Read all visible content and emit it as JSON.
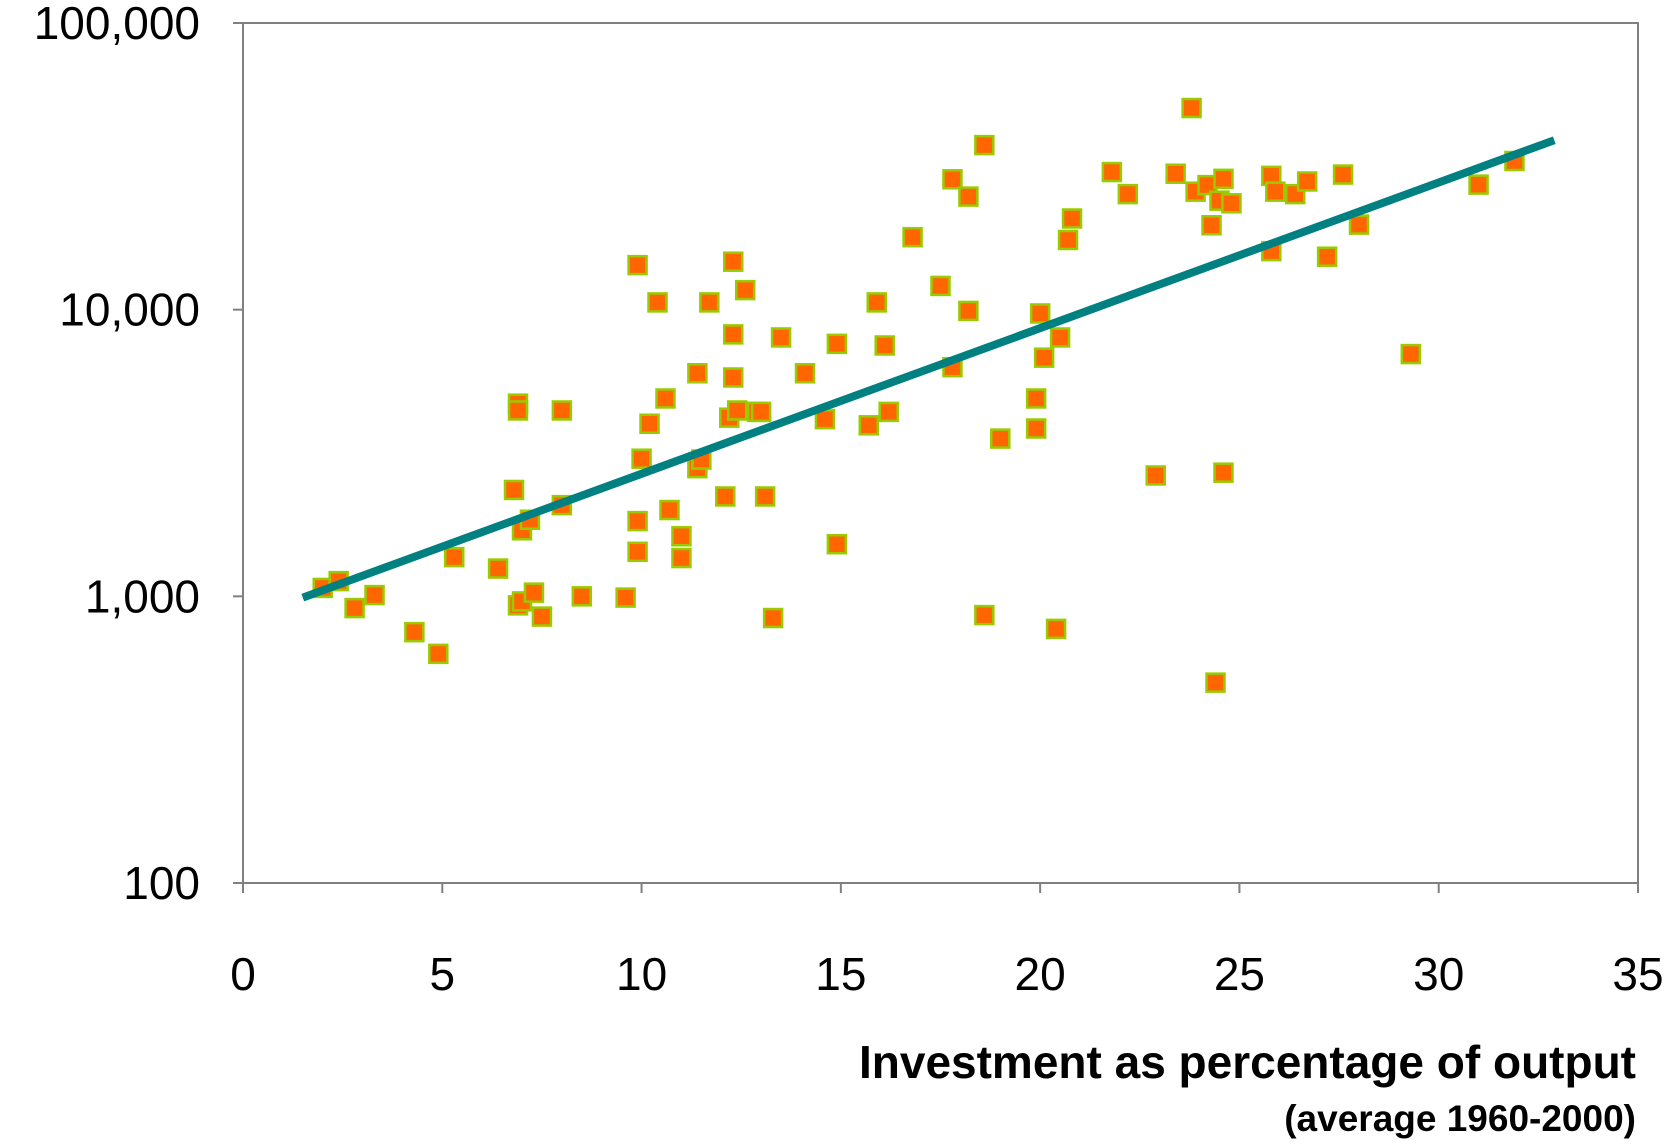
{
  "chart_data": {
    "type": "scatter",
    "title": "",
    "xlabel": "Investment as percentage of output",
    "xlabel_sub": "(average 1960-2000)",
    "ylabel": "",
    "xlim": [
      0,
      35
    ],
    "ylim": [
      100,
      100000
    ],
    "yscale": "log",
    "x_ticks": [
      0,
      5,
      10,
      15,
      20,
      25,
      30,
      35
    ],
    "x_tick_labels": [
      "0",
      "5",
      "10",
      "15",
      "20",
      "25",
      "30",
      "35"
    ],
    "y_ticks": [
      100,
      1000,
      10000,
      100000
    ],
    "y_tick_labels": [
      "100",
      "1,000",
      "10,000",
      "100,000"
    ],
    "grid": false,
    "legend": "none",
    "colors": {
      "marker_fill": "#ff6600",
      "marker_edge": "#99cc00",
      "trend_line": "#008080",
      "frame": "#808080"
    },
    "series": [
      {
        "marker": "square",
        "points": [
          [
            2.0,
            1070
          ],
          [
            2.4,
            1130
          ],
          [
            2.8,
            910
          ],
          [
            3.3,
            1010
          ],
          [
            4.3,
            750
          ],
          [
            4.9,
            630
          ],
          [
            5.3,
            1370
          ],
          [
            6.4,
            1250
          ],
          [
            6.8,
            2350
          ],
          [
            6.9,
            4700
          ],
          [
            6.9,
            4450
          ],
          [
            6.9,
            930
          ],
          [
            7.0,
            960
          ],
          [
            7.0,
            1700
          ],
          [
            7.2,
            1850
          ],
          [
            7.3,
            1030
          ],
          [
            7.5,
            850
          ],
          [
            8.0,
            2080
          ],
          [
            8.0,
            4450
          ],
          [
            8.5,
            1000
          ],
          [
            9.6,
            990
          ],
          [
            9.9,
            14300
          ],
          [
            9.9,
            1830
          ],
          [
            9.9,
            1430
          ],
          [
            10.0,
            3020
          ],
          [
            10.2,
            4000
          ],
          [
            10.4,
            10600
          ],
          [
            10.6,
            4900
          ],
          [
            10.7,
            2000
          ],
          [
            11.0,
            1620
          ],
          [
            11.0,
            1360
          ],
          [
            11.4,
            6000
          ],
          [
            11.4,
            2800
          ],
          [
            11.5,
            3000
          ],
          [
            11.7,
            10600
          ],
          [
            12.1,
            2230
          ],
          [
            12.2,
            4200
          ],
          [
            12.3,
            14700
          ],
          [
            12.3,
            8200
          ],
          [
            12.3,
            5800
          ],
          [
            12.4,
            4450
          ],
          [
            12.6,
            11700
          ],
          [
            12.9,
            4400
          ],
          [
            13.0,
            4400
          ],
          [
            13.1,
            2230
          ],
          [
            13.3,
            840
          ],
          [
            13.5,
            8000
          ],
          [
            14.1,
            6000
          ],
          [
            14.6,
            4150
          ],
          [
            14.9,
            7600
          ],
          [
            14.9,
            1520
          ],
          [
            15.7,
            3950
          ],
          [
            15.9,
            10600
          ],
          [
            16.1,
            7500
          ],
          [
            16.2,
            4400
          ],
          [
            16.8,
            17900
          ],
          [
            17.5,
            12100
          ],
          [
            17.8,
            28500
          ],
          [
            17.8,
            6300
          ],
          [
            18.2,
            24800
          ],
          [
            18.2,
            9900
          ],
          [
            18.6,
            37500
          ],
          [
            18.6,
            860
          ],
          [
            19.0,
            3550
          ],
          [
            19.9,
            4900
          ],
          [
            19.9,
            3850
          ],
          [
            20.0,
            9700
          ],
          [
            20.1,
            6800
          ],
          [
            20.4,
            770
          ],
          [
            20.5,
            8000
          ],
          [
            20.7,
            17500
          ],
          [
            20.8,
            20800
          ],
          [
            21.8,
            30200
          ],
          [
            22.2,
            25300
          ],
          [
            22.9,
            2640
          ],
          [
            23.4,
            29800
          ],
          [
            23.8,
            50500
          ],
          [
            23.9,
            25800
          ],
          [
            24.2,
            27200
          ],
          [
            24.3,
            19700
          ],
          [
            24.4,
            500
          ],
          [
            24.5,
            24000
          ],
          [
            24.6,
            28600
          ],
          [
            24.6,
            2700
          ],
          [
            24.8,
            23500
          ],
          [
            25.8,
            29300
          ],
          [
            25.8,
            16000
          ],
          [
            25.9,
            25800
          ],
          [
            26.4,
            25300
          ],
          [
            26.7,
            28000
          ],
          [
            27.2,
            15300
          ],
          [
            27.6,
            29600
          ],
          [
            28.0,
            19800
          ],
          [
            29.3,
            7000
          ],
          [
            31.0,
            27300
          ],
          [
            31.9,
            33000
          ]
        ]
      }
    ],
    "trend_line": {
      "x": [
        1.5,
        32.9
      ],
      "y": [
        990,
        39000
      ]
    }
  }
}
